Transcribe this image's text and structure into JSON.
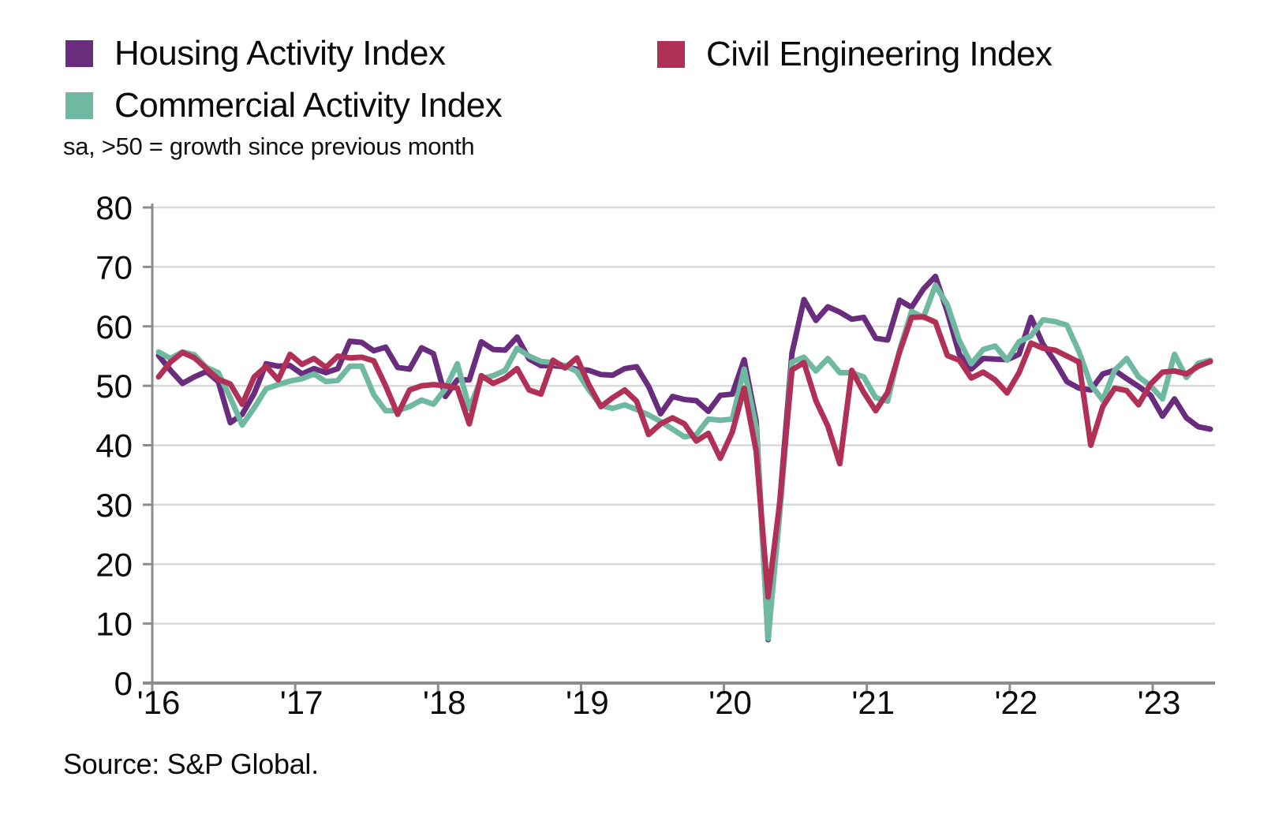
{
  "legend": {
    "items": [
      {
        "id": "housing",
        "label": "Housing Activity Index",
        "color": "#6A2D7E"
      },
      {
        "id": "civil",
        "label": "Civil Engineering Index",
        "color": "#B03056"
      },
      {
        "id": "commercial",
        "label": "Commercial Activity Index",
        "color": "#6FB9A3"
      }
    ]
  },
  "subtitle": "sa, >50 = growth since previous month",
  "source": "Source: S&P Global.",
  "chart_data": {
    "type": "line",
    "x_start_month": "2016-01",
    "x_end_month": "2023-05",
    "months_per_point": 1,
    "xtick_labels": [
      "'16",
      "'17",
      "'18",
      "'19",
      "'20",
      "'21",
      "'22",
      "'23"
    ],
    "ylim": [
      0,
      80
    ],
    "yticks": [
      0,
      10,
      20,
      30,
      40,
      50,
      60,
      70,
      80
    ],
    "grid": "horizontal",
    "legend_position": "top-left",
    "axis_color": "#8c8c8c",
    "gridline_color": "#d9d9d9",
    "series": [
      {
        "name": "Housing Activity Index",
        "color": "#6A2D7E",
        "values": [
          55.1,
          52.6,
          50.4,
          51.5,
          52.4,
          50.7,
          43.8,
          45.2,
          48.7,
          53.7,
          53.3,
          53.4,
          52.0,
          52.9,
          52.2,
          52.9,
          57.5,
          57.3,
          55.9,
          56.5,
          53.1,
          52.8,
          56.4,
          55.4,
          48.2,
          51.0,
          51.0,
          57.4,
          56.1,
          56.0,
          58.2,
          54.5,
          53.4,
          53.4,
          53.2,
          52.8,
          52.6,
          51.9,
          51.8,
          52.9,
          53.2,
          49.9,
          45.3,
          48.2,
          47.7,
          47.5,
          45.7,
          48.4,
          48.6,
          54.4,
          44.0,
          7.3,
          31.0,
          55.5,
          64.5,
          61.0,
          63.3,
          62.4,
          61.2,
          61.5,
          58.0,
          57.7,
          64.4,
          63.2,
          66.3,
          68.4,
          62.4,
          55.3,
          52.8,
          54.6,
          54.5,
          54.4,
          55.3,
          61.5,
          57.0,
          54.1,
          50.7,
          49.6,
          49.3,
          52.0,
          52.6,
          51.2,
          49.9,
          48.4,
          44.9,
          47.8,
          44.6,
          43.1,
          42.7
        ]
      },
      {
        "name": "Commercial Activity Index",
        "color": "#6FB9A3",
        "values": [
          55.7,
          54.6,
          55.7,
          55.2,
          53.1,
          52.2,
          48.0,
          43.4,
          46.3,
          49.5,
          50.2,
          50.8,
          51.2,
          52.0,
          50.7,
          50.9,
          53.3,
          53.3,
          48.5,
          45.8,
          45.8,
          46.5,
          47.6,
          46.9,
          49.5,
          53.7,
          46.2,
          51.2,
          51.7,
          52.6,
          56.3,
          55.0,
          54.1,
          53.9,
          53.4,
          52.4,
          49.3,
          46.7,
          46.2,
          46.8,
          46.0,
          45.1,
          44.0,
          42.7,
          41.4,
          41.8,
          44.4,
          44.2,
          44.4,
          52.8,
          43.0,
          7.5,
          29.0,
          54.0,
          54.8,
          52.5,
          54.6,
          52.2,
          52.2,
          51.5,
          48.0,
          47.4,
          56.0,
          62.5,
          61.5,
          66.9,
          63.6,
          57.6,
          53.7,
          56.1,
          56.7,
          54.3,
          57.4,
          58.4,
          61.1,
          60.8,
          60.2,
          55.8,
          50.2,
          47.6,
          52.6,
          54.6,
          51.5,
          50.0,
          47.8,
          55.3,
          51.4,
          53.8,
          54.3
        ]
      },
      {
        "name": "Civil Engineering Index",
        "color": "#B03056",
        "values": [
          51.5,
          54.0,
          55.6,
          54.7,
          52.9,
          51.1,
          50.3,
          46.9,
          51.5,
          53.3,
          51.0,
          55.3,
          53.6,
          54.6,
          53.1,
          55.0,
          54.7,
          54.8,
          54.2,
          50.0,
          45.2,
          49.3,
          50.0,
          50.2,
          50.0,
          49.6,
          43.6,
          51.7,
          50.4,
          51.3,
          52.9,
          49.3,
          48.6,
          54.3,
          53.0,
          54.7,
          50.2,
          46.5,
          48.0,
          49.3,
          47.4,
          41.8,
          43.6,
          44.6,
          43.6,
          40.7,
          42.0,
          37.8,
          42.2,
          49.6,
          39.0,
          14.5,
          30.8,
          52.7,
          53.9,
          47.5,
          43.2,
          36.9,
          52.6,
          48.9,
          45.8,
          48.9,
          55.7,
          61.5,
          61.6,
          60.7,
          55.1,
          54.3,
          51.3,
          52.3,
          51.0,
          48.8,
          52.2,
          57.2,
          56.3,
          56.0,
          55.0,
          54.0,
          40.0,
          46.5,
          49.6,
          49.2,
          46.8,
          50.3,
          52.3,
          52.5,
          52.0,
          53.3,
          54.1
        ]
      }
    ]
  }
}
